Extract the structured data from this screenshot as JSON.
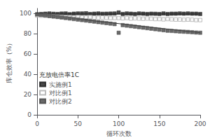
{
  "chart_data": {
    "type": "scatter",
    "xlabel": "循环次数",
    "ylabel": "库仓效率（%）",
    "legend_title": "充放电倍率1C",
    "legend": "lower left",
    "grid": false,
    "xlim": [
      0,
      200
    ],
    "ylim": [
      0,
      105
    ],
    "xticks": [
      0,
      50,
      100,
      150,
      200
    ],
    "yticks": [
      0,
      20,
      40,
      60,
      80,
      100
    ],
    "series": [
      {
        "type": "scatter",
        "name": "实施例1",
        "color": "#1a1a1a",
        "marker": "square",
        "x": [
          0,
          5,
          10,
          15,
          20,
          25,
          30,
          35,
          40,
          45,
          50,
          55,
          60,
          65,
          70,
          75,
          80,
          85,
          90,
          95,
          100,
          105,
          110,
          115,
          120,
          125,
          130,
          135,
          140,
          145,
          150,
          155,
          160,
          165,
          170,
          175,
          180,
          185,
          190,
          195,
          200
        ],
        "values": [
          99.2,
          99.5,
          99.8,
          100,
          99.7,
          99.5,
          99.9,
          100,
          99.3,
          99.8,
          100,
          100,
          100.2,
          99.5,
          99.8,
          100,
          99.7,
          99.8,
          99.9,
          100,
          101,
          99.5,
          100,
          99.8,
          99.5,
          100,
          99.8,
          99.5,
          99.8,
          99.7,
          99.5,
          100,
          99.5,
          99.8,
          99.8,
          100,
          99.8,
          100,
          99.8,
          99.8,
          99.5
        ]
      },
      {
        "type": "line",
        "color": "#1a1a1a",
        "x": [
          0,
          200
        ],
        "values": [
          99.5,
          99.5
        ]
      },
      {
        "type": "scatter",
        "name": "对比例1",
        "color": "#aaaaaa",
        "marker": "open square",
        "x": [
          0,
          5,
          10,
          15,
          20,
          25,
          30,
          35,
          40,
          45,
          50,
          55,
          60,
          65,
          70,
          75,
          80,
          85,
          90,
          95,
          100,
          105,
          110,
          115,
          120,
          125,
          130,
          135,
          140,
          145,
          150,
          155,
          160,
          165,
          170,
          175,
          180,
          185,
          190,
          195,
          200
        ],
        "values": [
          98,
          97.8,
          97.8,
          97.5,
          97.2,
          97,
          96.8,
          96.5,
          96.5,
          96.3,
          96.5,
          96.2,
          96,
          96.5,
          96,
          95.8,
          96,
          95.8,
          95.5,
          95.5,
          95.5,
          95.2,
          95.5,
          95.0,
          95.2,
          95.0,
          94.8,
          95.0,
          94.8,
          94.5,
          94.5,
          94.2,
          94.5,
          94.2,
          94.0,
          94.0,
          93.8,
          94.0,
          93.8,
          93.5,
          93.5
        ]
      },
      {
        "type": "line",
        "color": "#aaaaaa",
        "x": [
          0,
          200
        ],
        "values": [
          97.8,
          93.5
        ]
      },
      {
        "type": "scatter",
        "name": "对比例2",
        "color": "#444444",
        "marker": "square",
        "x": [
          0,
          5,
          10,
          15,
          20,
          25,
          30,
          35,
          40,
          45,
          50,
          55,
          60,
          65,
          70,
          75,
          80,
          85,
          90,
          95,
          100,
          105,
          110,
          115,
          120,
          125,
          130,
          135,
          140,
          145,
          150,
          155,
          160,
          165,
          170,
          175,
          180,
          185,
          190,
          195,
          200
        ],
        "values": [
          99,
          98.5,
          98,
          97.5,
          97,
          96.5,
          96,
          95.5,
          95,
          94.5,
          94,
          93.5,
          93,
          92.5,
          92,
          91.5,
          91,
          90.5,
          90,
          89.5,
          81,
          88.5,
          88,
          87.5,
          87,
          86.5,
          86,
          85.5,
          85,
          84.5,
          84,
          83.5,
          83,
          82.8,
          82.5,
          82.2,
          82,
          81.8,
          81.5,
          81.2,
          81
        ]
      },
      {
        "type": "line",
        "color": "#333333",
        "x": [
          0,
          200
        ],
        "values": [
          99,
          81
        ]
      }
    ]
  }
}
